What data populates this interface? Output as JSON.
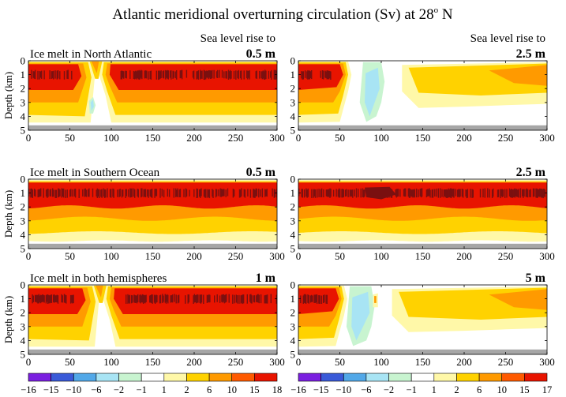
{
  "title_main": "Atlantic meridional overturning circulation (Sv) at 28",
  "title_sup": "o",
  "title_tail": " N",
  "colors": {
    "scale": [
      "#7a1fe0",
      "#3a5ad8",
      "#52a8e8",
      "#a8e4f4",
      "#c8f4d0",
      "#ffffff",
      "#fff8a8",
      "#ffd200",
      "#ff9a00",
      "#ff5a00",
      "#e81400",
      "#7a1010"
    ],
    "bottom_band": "#a6a6a6"
  },
  "chart_data": [
    {
      "type": "heatmap",
      "panel": "top-left",
      "row_label": "Ice melt in North Atlantic",
      "header": "Sea level rise to",
      "amount": "0.5 m",
      "xlim": [
        0,
        300
      ],
      "ylim": [
        0,
        5
      ],
      "ylabel": "Depth (km)",
      "x_ticks": [
        "0",
        "50",
        "100",
        "150",
        "200",
        "250",
        "300"
      ],
      "y_ticks": [
        "0",
        "1",
        "2",
        "3",
        "4",
        "5"
      ],
      "core_max_sv": "15-18",
      "gap_x": [
        70,
        95
      ]
    },
    {
      "type": "heatmap",
      "panel": "top-right",
      "header": "Sea level rise to",
      "amount": "2.5 m",
      "xlim": [
        0,
        300
      ],
      "ylim": [
        0,
        5
      ],
      "x_ticks": [
        "0",
        "50",
        "100",
        "150",
        "200",
        "250",
        "300"
      ],
      "y_ticks": [
        "0",
        "1",
        "2",
        "3",
        "4",
        "5"
      ],
      "negative_region_x": [
        75,
        100
      ]
    },
    {
      "type": "heatmap",
      "panel": "middle-left",
      "row_label": "Ice melt in Southern Ocean",
      "amount": "0.5 m",
      "xlim": [
        0,
        300
      ],
      "ylim": [
        0,
        5
      ],
      "ylabel": "Depth (km)",
      "x_ticks": [
        "0",
        "50",
        "100",
        "150",
        "200",
        "250",
        "300"
      ],
      "y_ticks": [
        "0",
        "1",
        "2",
        "3",
        "4",
        "5"
      ]
    },
    {
      "type": "heatmap",
      "panel": "middle-right",
      "amount": "2.5 m",
      "xlim": [
        0,
        300
      ],
      "ylim": [
        0,
        5
      ],
      "x_ticks": [
        "0",
        "50",
        "100",
        "150",
        "200",
        "250",
        "300"
      ],
      "y_ticks": [
        "0",
        "1",
        "2",
        "3",
        "4",
        "5"
      ]
    },
    {
      "type": "heatmap",
      "panel": "bottom-left",
      "row_label": "Ice melt in both hemispheres",
      "amount": "1 m",
      "xlim": [
        0,
        300
      ],
      "ylim": [
        0,
        5
      ],
      "ylabel": "Depth (km)",
      "x_ticks": [
        "0",
        "50",
        "100",
        "150",
        "200",
        "250",
        "300"
      ],
      "y_ticks": [
        "0",
        "1",
        "2",
        "3",
        "4",
        "5"
      ],
      "gap_x": [
        75,
        100
      ]
    },
    {
      "type": "heatmap",
      "panel": "bottom-right",
      "amount": "5 m",
      "xlim": [
        0,
        300
      ],
      "ylim": [
        0,
        5
      ],
      "x_ticks": [
        "0",
        "50",
        "100",
        "150",
        "200",
        "250",
        "300"
      ],
      "y_ticks": [
        "0",
        "1",
        "2",
        "3",
        "4",
        "5"
      ],
      "negative_region_x": [
        60,
        100
      ]
    }
  ],
  "colorbars": [
    {
      "panel": "left",
      "labels": [
        "−16",
        "−15",
        "−10",
        "−6",
        "−2",
        "−1",
        "1",
        "2",
        "6",
        "10",
        "15",
        "18"
      ]
    },
    {
      "panel": "right",
      "labels": [
        "−16",
        "−15",
        "−10",
        "−6",
        "−2",
        "−1",
        "1",
        "2",
        "6",
        "10",
        "15",
        "17"
      ]
    }
  ]
}
